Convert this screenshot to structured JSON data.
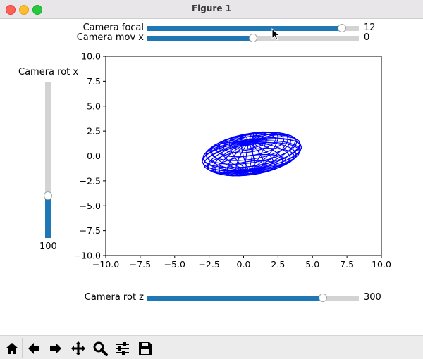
{
  "window": {
    "title": "Figure 1"
  },
  "sliders": {
    "focal": {
      "label": "Camera focal",
      "value_text": "12",
      "fraction": 0.92
    },
    "movx": {
      "label": "Camera mov x",
      "value_text": "0",
      "fraction": 0.5
    },
    "rotx": {
      "label": "Camera rot x",
      "value_text": "100",
      "fraction": 0.27
    },
    "rotz": {
      "label": "Camera rot z",
      "value_text": "300",
      "fraction": 0.83
    }
  },
  "chart_data": {
    "type": "line",
    "title": "",
    "xlabel": "",
    "ylabel": "",
    "xlim": [
      -10,
      10
    ],
    "ylim": [
      -10,
      10
    ],
    "xticks": [
      "−10.0",
      "−7.5",
      "−5.0",
      "−2.5",
      "0.0",
      "2.5",
      "5.0",
      "7.5",
      "10.0"
    ],
    "yticks": [
      "10.0",
      "7.5",
      "5.0",
      "2.5",
      "0.0",
      "−2.5",
      "−5.0",
      "−7.5",
      "−10.0"
    ],
    "grid": false,
    "series": [
      {
        "description_shape": "projected wireframe ellipsoid",
        "color": "#0000ff",
        "center": [
          0.6,
          0.2
        ],
        "radius_x": 3.6,
        "radius_y": 2.2
      }
    ]
  },
  "toolbar": {
    "items": [
      {
        "icon": "home-icon"
      },
      {
        "icon": "back-arrow-icon"
      },
      {
        "icon": "forward-arrow-icon"
      },
      {
        "icon": "pan-icon"
      },
      {
        "icon": "zoom-icon"
      },
      {
        "icon": "configure-subplots-icon"
      },
      {
        "icon": "save-icon"
      }
    ]
  },
  "colors": {
    "slider_fill": "#1f77b4",
    "slider_track": "#d3d3d3",
    "wireframe": "#0000ff"
  }
}
